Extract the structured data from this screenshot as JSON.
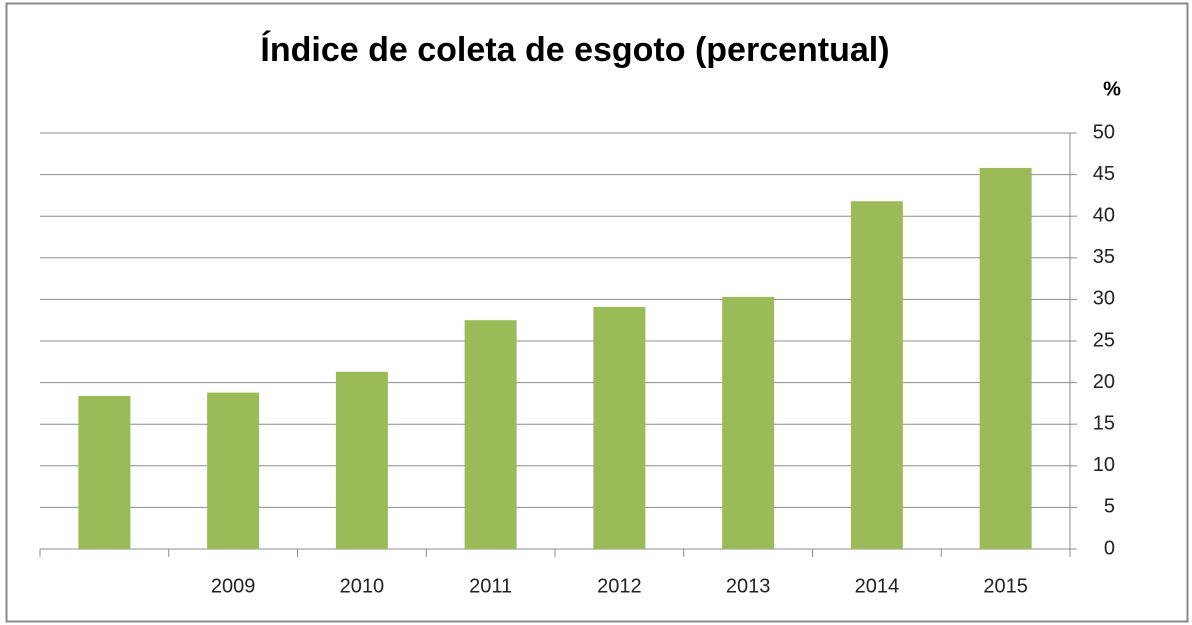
{
  "chart_data": {
    "type": "bar",
    "title": "Índice de coleta de esgoto (percentual)",
    "y_axis_label": "%",
    "categories": [
      null,
      "2009",
      "2010",
      "2011",
      "2012",
      "2013",
      "2014",
      "2015"
    ],
    "values": [
      18.4,
      18.8,
      21.3,
      27.5,
      29.1,
      30.3,
      41.8,
      45.8
    ],
    "color": "#9bbb59",
    "ylim": [
      0,
      50
    ],
    "yticks": [
      0,
      5,
      10,
      15,
      20,
      25,
      30,
      35,
      40,
      45,
      50
    ],
    "grid": true,
    "y_axis_side": "right"
  }
}
